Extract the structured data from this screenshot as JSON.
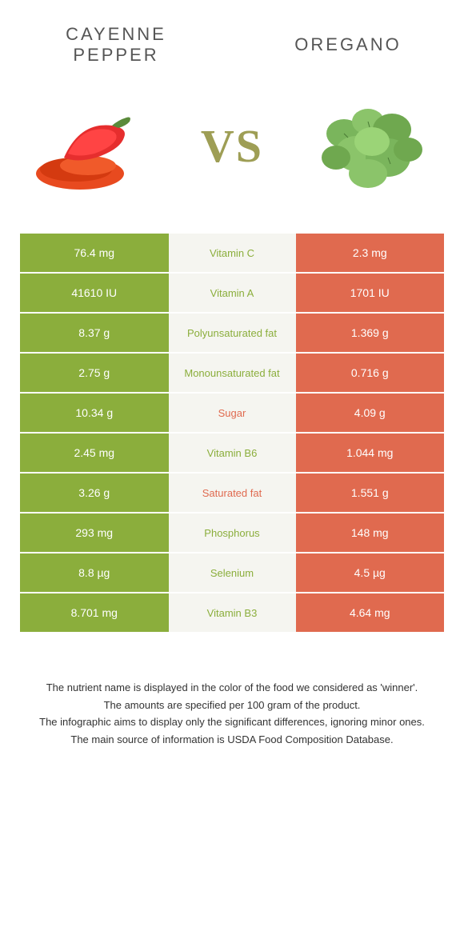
{
  "colors": {
    "left": "#8bae3c",
    "right": "#e06a4f",
    "mid_bg": "#f5f5f0",
    "mid_text_left": "#8bae3c",
    "mid_text_right": "#e06a4f",
    "white": "#ffffff"
  },
  "food_left": "CAYENNE PEPPER",
  "food_right": "OREGANO",
  "vs": "VS",
  "rows": [
    {
      "left": "76.4 mg",
      "label": "Vitamin C",
      "right": "2.3 mg",
      "winner": "left"
    },
    {
      "left": "41610 IU",
      "label": "Vitamin A",
      "right": "1701 IU",
      "winner": "left"
    },
    {
      "left": "8.37 g",
      "label": "Polyunsaturated fat",
      "right": "1.369 g",
      "winner": "left"
    },
    {
      "left": "2.75 g",
      "label": "Monounsaturated fat",
      "right": "0.716 g",
      "winner": "left"
    },
    {
      "left": "10.34 g",
      "label": "Sugar",
      "right": "4.09 g",
      "winner": "right"
    },
    {
      "left": "2.45 mg",
      "label": "Vitamin B6",
      "right": "1.044 mg",
      "winner": "left"
    },
    {
      "left": "3.26 g",
      "label": "Saturated fat",
      "right": "1.551 g",
      "winner": "right"
    },
    {
      "left": "293 mg",
      "label": "Phosphorus",
      "right": "148 mg",
      "winner": "left"
    },
    {
      "left": "8.8 µg",
      "label": "Selenium",
      "right": "4.5 µg",
      "winner": "left"
    },
    {
      "left": "8.701 mg",
      "label": "Vitamin B3",
      "right": "4.64 mg",
      "winner": "left"
    }
  ],
  "footer": [
    "The nutrient name is displayed in the color of the food we considered as 'winner'.",
    "The amounts are specified per 100 gram of the product.",
    "The infographic aims to display only the significant differences, ignoring minor ones.",
    "The main source of information is USDA Food Composition Database."
  ]
}
